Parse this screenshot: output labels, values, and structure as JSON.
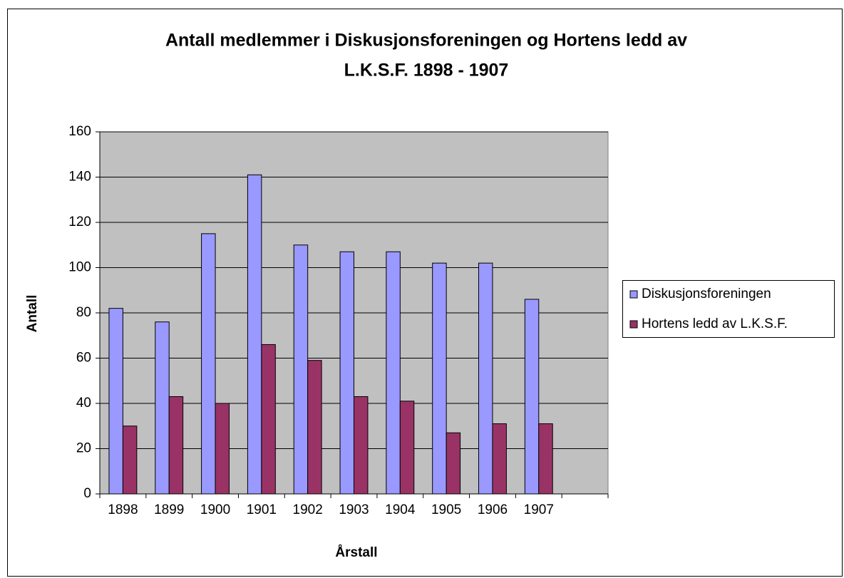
{
  "chart_data": {
    "type": "bar",
    "title": [
      "Antall medlemmer i Diskusjonsforeningen og Hortens ledd av",
      "L.K.S.F. 1898 - 1907"
    ],
    "xlabel": "Årstall",
    "ylabel": "Antall",
    "categories": [
      "1898",
      "1899",
      "1900",
      "1901",
      "1902",
      "1903",
      "1904",
      "1905",
      "1906",
      "1907",
      null
    ],
    "series": [
      {
        "name": "Diskusjonsforeningen",
        "color": "#9999ff",
        "values": [
          82,
          76,
          115,
          141,
          110,
          107,
          107,
          102,
          102,
          86,
          null
        ]
      },
      {
        "name": "Hortens ledd av L.K.S.F.",
        "color": "#993366",
        "values": [
          30,
          43,
          40,
          66,
          59,
          43,
          41,
          27,
          31,
          31,
          null
        ]
      }
    ],
    "ylim": [
      0,
      160
    ],
    "yticks": [
      0,
      20,
      40,
      60,
      80,
      100,
      120,
      140,
      160
    ],
    "grid": true,
    "legend": "right",
    "plot_background": "#c0c0c0"
  }
}
